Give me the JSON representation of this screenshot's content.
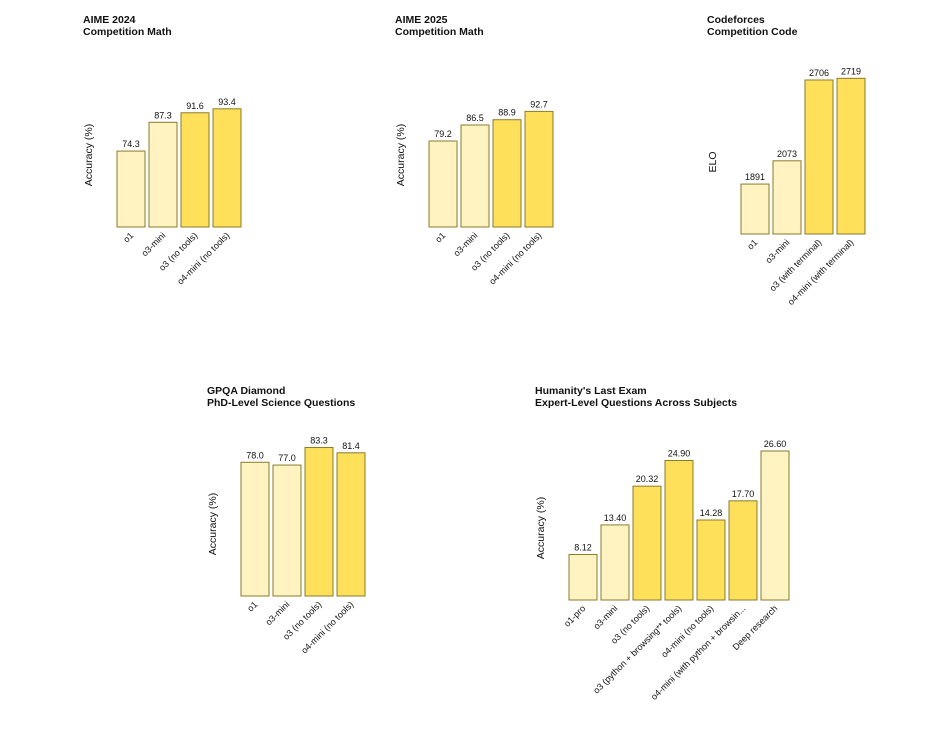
{
  "colors": {
    "light": "#fff3c2",
    "bright": "#ffe05a",
    "stroke": "#8a7a2a"
  },
  "chart_data": [
    {
      "type": "bar",
      "title": "AIME 2024",
      "subtitle": "Competition Math",
      "ylabel": "Accuracy (%)",
      "xlabel": "",
      "categories": [
        "o1",
        "o3-mini",
        "o3 (no tools)",
        "o4-mini (no tools)"
      ],
      "values": [
        74.3,
        87.3,
        91.6,
        93.4
      ],
      "value_labels": [
        "74.3",
        "87.3",
        "91.6",
        "93.4"
      ],
      "highlight": [
        false,
        false,
        true,
        true
      ]
    },
    {
      "type": "bar",
      "title": "AIME 2025",
      "subtitle": "Competition Math",
      "ylabel": "Accuracy (%)",
      "xlabel": "",
      "categories": [
        "o1",
        "o3-mini",
        "o3 (no tools)",
        "o4-mini (no tools)"
      ],
      "values": [
        79.2,
        86.5,
        88.9,
        92.7
      ],
      "value_labels": [
        "79.2",
        "86.5",
        "88.9",
        "92.7"
      ],
      "highlight": [
        false,
        false,
        true,
        true
      ]
    },
    {
      "type": "bar",
      "title": "Codeforces",
      "subtitle": "Competition Code",
      "ylabel": "ELO",
      "xlabel": "",
      "categories": [
        "o1",
        "o3-mini",
        "o3 (with terminal)",
        "o4-mini (with terminal)"
      ],
      "values": [
        1891,
        2073,
        2706,
        2719
      ],
      "value_labels": [
        "1891",
        "2073",
        "2706",
        "2719"
      ],
      "highlight": [
        false,
        false,
        true,
        true
      ]
    },
    {
      "type": "bar",
      "title": "GPQA Diamond",
      "subtitle": "PhD-Level Science Questions",
      "ylabel": "Accuracy (%)",
      "xlabel": "",
      "categories": [
        "o1",
        "o3-mini",
        "o3 (no tools)",
        "o4-mini (no tools)"
      ],
      "values": [
        78.0,
        77.0,
        83.3,
        81.4
      ],
      "value_labels": [
        "78.0",
        "77.0",
        "83.3",
        "81.4"
      ],
      "highlight": [
        false,
        false,
        true,
        true
      ]
    },
    {
      "type": "bar",
      "title": "Humanity's Last Exam",
      "subtitle": "Expert-Level Questions Across Subjects",
      "ylabel": "Accuracy (%)",
      "xlabel": "",
      "categories": [
        "o1-pro",
        "o3-mini",
        "o3 (no tools)",
        "o3 (python + browsing** tools)",
        "o4-mini (no tools)",
        "o4-mini (with python + browsin...",
        "Deep research"
      ],
      "values": [
        8.12,
        13.4,
        20.32,
        24.9,
        14.28,
        17.7,
        26.6
      ],
      "value_labels": [
        "8.12",
        "13.40",
        "20.32",
        "24.90",
        "14.28",
        "17.70",
        "26.60"
      ],
      "highlight": [
        false,
        false,
        true,
        true,
        true,
        true,
        false
      ]
    }
  ]
}
